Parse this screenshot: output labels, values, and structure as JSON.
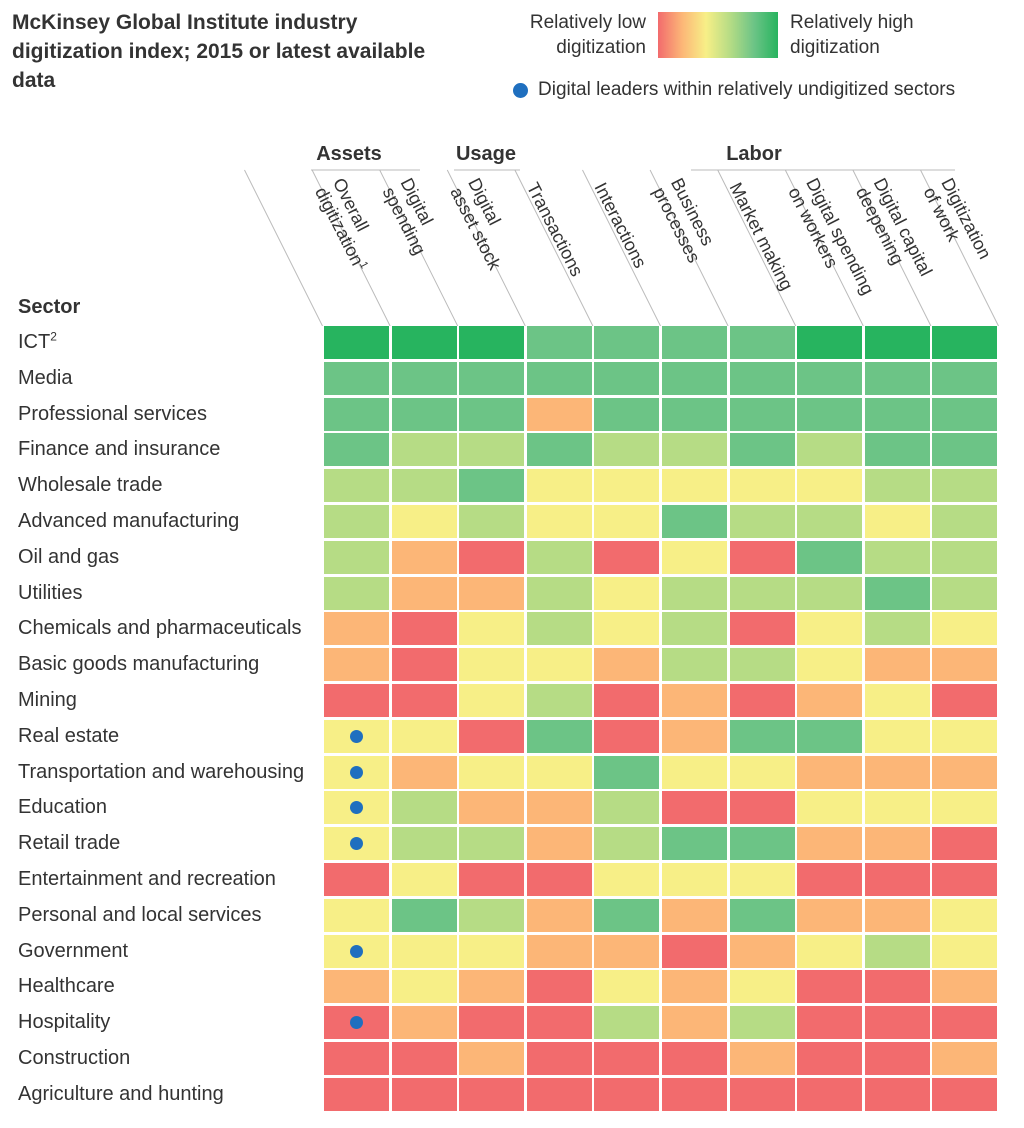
{
  "title": "McKinsey Global Institute industry digitization index; 2015 or latest available data",
  "legend": {
    "low_label": "Relatively low digitization",
    "high_label": "Relatively high digitization",
    "dot_label": "Digital leaders within relatively undigitized sectors",
    "scale_colors": [
      "#f26b6d",
      "#fcb677",
      "#f7ef87",
      "#b6dc85",
      "#6cc486",
      "#27b45f"
    ],
    "dot_color": "#1f6fbf"
  },
  "groups": [
    "Assets",
    "Usage",
    "Labor"
  ],
  "sector_header": "Sector",
  "columns": [
    {
      "lines": [
        "Overall",
        "digitization"
      ],
      "sup": "1"
    },
    {
      "lines": [
        "Digital",
        "spending"
      ],
      "sup": ""
    },
    {
      "lines": [
        "Digital",
        "asset stock"
      ],
      "sup": ""
    },
    {
      "lines": [
        "Transactions"
      ],
      "sup": ""
    },
    {
      "lines": [
        "Interactions"
      ],
      "sup": ""
    },
    {
      "lines": [
        "Business",
        "processes"
      ],
      "sup": ""
    },
    {
      "lines": [
        "Market making"
      ],
      "sup": ""
    },
    {
      "lines": [
        "Digital spending",
        "on workers"
      ],
      "sup": ""
    },
    {
      "lines": [
        "Digital capital",
        "deepening"
      ],
      "sup": ""
    },
    {
      "lines": [
        "Digitization",
        "of work"
      ],
      "sup": ""
    }
  ],
  "chart_data": {
    "type": "heatmap",
    "title": "McKinsey Global Institute industry digitization index; 2015 or latest available data",
    "scale": "0 = relatively low digitization, 5 = relatively high digitization",
    "columns": [
      "Overall digitization",
      "Digital spending",
      "Digital asset stock",
      "Transactions",
      "Interactions",
      "Business processes",
      "Market making",
      "Digital spending on workers",
      "Digital capital deepening",
      "Digitization of work"
    ],
    "rows": [
      {
        "sector": "ICT",
        "sup": "2",
        "leader": false,
        "values": [
          5,
          5,
          5,
          4,
          4,
          4,
          4,
          5,
          5,
          5
        ]
      },
      {
        "sector": "Media",
        "sup": "",
        "leader": false,
        "values": [
          4,
          4,
          4,
          4,
          4,
          4,
          4,
          4,
          4,
          4
        ]
      },
      {
        "sector": "Professional services",
        "sup": "",
        "leader": false,
        "values": [
          4,
          4,
          4,
          1,
          4,
          4,
          4,
          4,
          4,
          4
        ]
      },
      {
        "sector": "Finance and insurance",
        "sup": "",
        "leader": false,
        "values": [
          4,
          3,
          3,
          4,
          3,
          3,
          4,
          3,
          4,
          4
        ]
      },
      {
        "sector": "Wholesale trade",
        "sup": "",
        "leader": false,
        "values": [
          3,
          3,
          4,
          2,
          2,
          2,
          2,
          2,
          3,
          3
        ]
      },
      {
        "sector": "Advanced manufacturing",
        "sup": "",
        "leader": false,
        "values": [
          3,
          2,
          3,
          2,
          2,
          4,
          3,
          3,
          2,
          3
        ]
      },
      {
        "sector": "Oil and gas",
        "sup": "",
        "leader": false,
        "values": [
          3,
          1,
          0,
          3,
          0,
          2,
          0,
          4,
          3,
          3
        ]
      },
      {
        "sector": "Utilities",
        "sup": "",
        "leader": false,
        "values": [
          3,
          1,
          1,
          3,
          2,
          3,
          3,
          3,
          4,
          3
        ]
      },
      {
        "sector": "Chemicals and pharmaceuticals",
        "sup": "",
        "leader": false,
        "values": [
          1,
          0,
          2,
          3,
          2,
          3,
          0,
          2,
          3,
          2
        ]
      },
      {
        "sector": "Basic goods manufacturing",
        "sup": "",
        "leader": false,
        "values": [
          1,
          0,
          2,
          2,
          1,
          3,
          3,
          2,
          1,
          1
        ]
      },
      {
        "sector": "Mining",
        "sup": "",
        "leader": false,
        "values": [
          0,
          0,
          2,
          3,
          0,
          1,
          0,
          1,
          2,
          0
        ]
      },
      {
        "sector": "Real estate",
        "sup": "",
        "leader": true,
        "values": [
          2,
          2,
          0,
          4,
          0,
          1,
          4,
          4,
          2,
          2
        ]
      },
      {
        "sector": "Transportation and warehousing",
        "sup": "",
        "leader": true,
        "values": [
          2,
          1,
          2,
          2,
          4,
          2,
          2,
          1,
          1,
          1
        ]
      },
      {
        "sector": "Education",
        "sup": "",
        "leader": true,
        "values": [
          2,
          3,
          1,
          1,
          3,
          0,
          0,
          2,
          2,
          2
        ]
      },
      {
        "sector": "Retail trade",
        "sup": "",
        "leader": true,
        "values": [
          2,
          3,
          3,
          1,
          3,
          4,
          4,
          1,
          1,
          0
        ]
      },
      {
        "sector": "Entertainment and recreation",
        "sup": "",
        "leader": false,
        "values": [
          0,
          2,
          0,
          0,
          2,
          2,
          2,
          0,
          0,
          0
        ]
      },
      {
        "sector": "Personal and local services",
        "sup": "",
        "leader": false,
        "values": [
          2,
          4,
          3,
          1,
          4,
          1,
          4,
          1,
          1,
          2
        ]
      },
      {
        "sector": "Government",
        "sup": "",
        "leader": true,
        "values": [
          2,
          2,
          2,
          1,
          1,
          0,
          1,
          2,
          3,
          2
        ]
      },
      {
        "sector": "Healthcare",
        "sup": "",
        "leader": false,
        "values": [
          1,
          2,
          1,
          0,
          2,
          1,
          2,
          0,
          0,
          1
        ]
      },
      {
        "sector": "Hospitality",
        "sup": "",
        "leader": true,
        "values": [
          0,
          1,
          0,
          0,
          3,
          1,
          3,
          0,
          0,
          0
        ]
      },
      {
        "sector": "Construction",
        "sup": "",
        "leader": false,
        "values": [
          0,
          0,
          1,
          0,
          0,
          0,
          1,
          0,
          0,
          1
        ]
      },
      {
        "sector": "Agriculture and hunting",
        "sup": "",
        "leader": false,
        "values": [
          0,
          0,
          0,
          0,
          0,
          0,
          0,
          0,
          0,
          0
        ]
      }
    ]
  }
}
